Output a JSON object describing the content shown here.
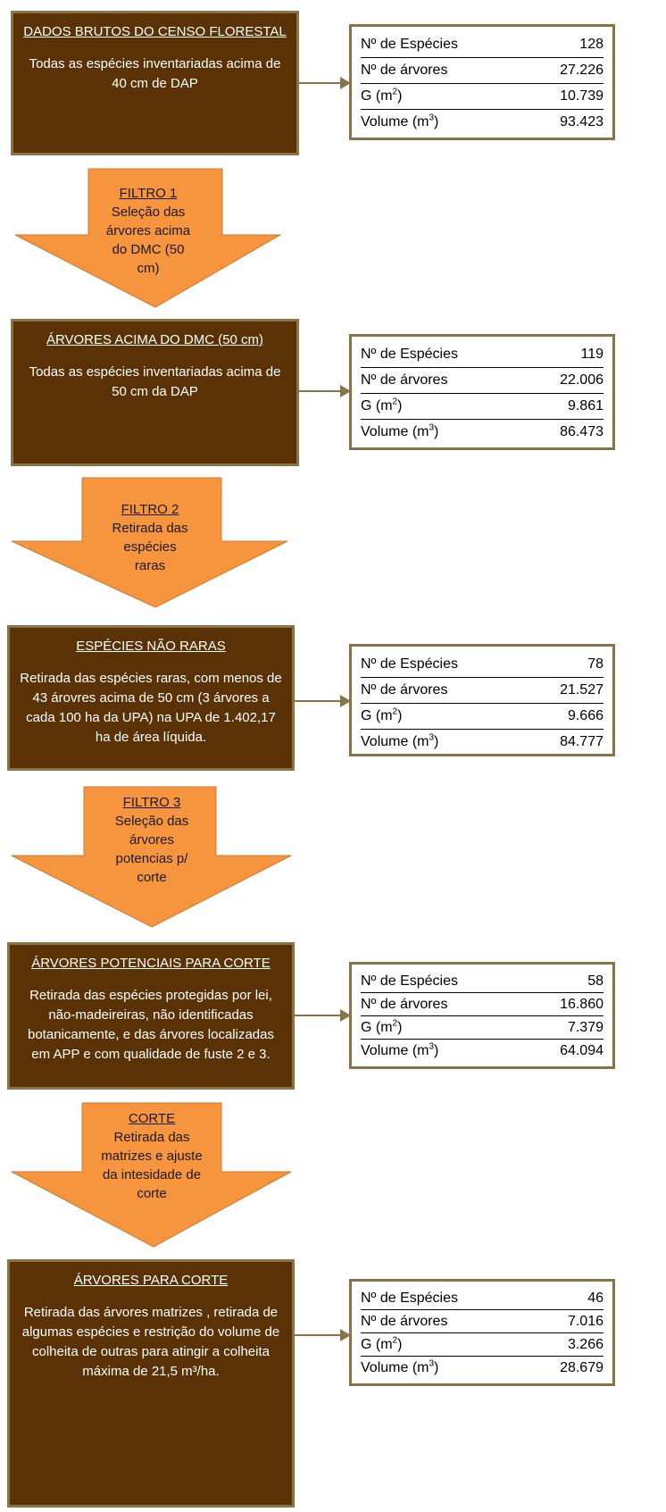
{
  "stages": [
    {
      "title": "DADOS  BRUTOS DO CENSO FLORESTAL",
      "desc": "Todas as espécies inventariadas acima de 40 cm de DAP",
      "stats": {
        "especies": "128",
        "arvores": "27.226",
        "g": "10.739",
        "volume": "93.423"
      }
    },
    {
      "title": "ÁRVORES ACIMA DO DMC (50 cm)",
      "desc": "Todas as espécies inventariadas acima de 50 cm da DAP",
      "stats": {
        "especies": "119",
        "arvores": "22.006",
        "g": "9.861",
        "volume": "86.473"
      }
    },
    {
      "title": "ESPÉCIES NÃO RARAS",
      "desc": "Retirada das espécies raras, com menos de 43 árovres acima de 50  cm  (3 árvores a cada 100 ha da UPA) na UPA de 1.402,17 ha de área líquida.",
      "stats": {
        "especies": "78",
        "arvores": "21.527",
        "g": "9.666",
        "volume": "84.777"
      }
    },
    {
      "title": "ÁRVORES POTENCIAIS PARA CORTE",
      "desc": "Retirada das espécies protegidas por lei, não-madeireiras, não identificadas botanicamente, e das árvores localizadas em APP e com qualidade de fuste 2 e 3.",
      "stats": {
        "especies": "58",
        "arvores": "16.860",
        "g": "7.379",
        "volume": "64.094"
      }
    },
    {
      "title": "ÁRVORES PARA CORTE",
      "desc": "Retirada das  árvores matrizes , retirada de algumas espécies e restrição do volume de colheita de outras para atingir a colheita máxima de 21,5 m³/ha.",
      "stats": {
        "especies": "46",
        "arvores": "7.016",
        "g": "3.266",
        "volume": "28.679"
      }
    }
  ],
  "filters": [
    {
      "title": "FILTRO 1",
      "desc": "Seleção das árvores acima do DMC (50 cm)"
    },
    {
      "title": "FILTRO 2",
      "desc": "Retirada das espécies raras"
    },
    {
      "title": "FILTRO 3",
      "desc": "Seleção das árvores potencias p/ corte"
    },
    {
      "title": "CORTE",
      "desc": "Retirada das matrizes e ajuste da intesidade de corte"
    }
  ],
  "stat_labels": {
    "especies": "Nº de Espécies",
    "arvores": "Nº de árvores",
    "g": "G (m",
    "g_sup": "2",
    "g_close": ")",
    "volume": "Volume (m",
    "volume_sup": "3",
    "volume_close": ")"
  },
  "colors": {
    "stage_fill": "#5a3206",
    "stage_border": "#8a7346",
    "filter_fill": "#f7953f",
    "stats_border": "#8a7346"
  }
}
